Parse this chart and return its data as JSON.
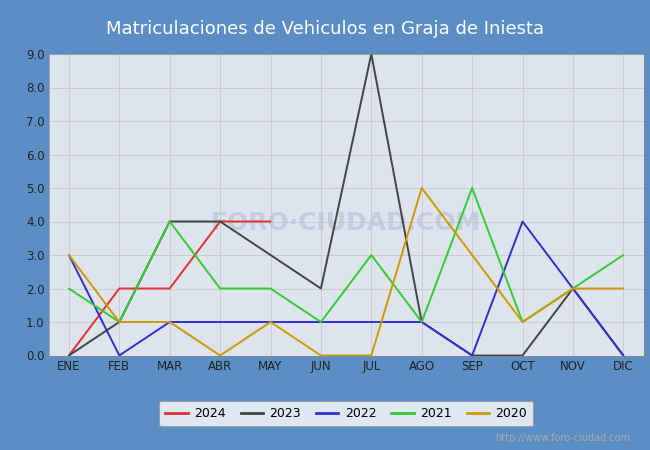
{
  "title": "Matriculaciones de Vehiculos en Graja de Iniesta",
  "months": [
    "ENE",
    "FEB",
    "MAR",
    "ABR",
    "MAY",
    "JUN",
    "JUL",
    "AGO",
    "SEP",
    "OCT",
    "NOV",
    "DIC"
  ],
  "series": {
    "2024": {
      "data": [
        0,
        2,
        2,
        4,
        4,
        null,
        null,
        null,
        null,
        null,
        null,
        null
      ],
      "color": "#e03030"
    },
    "2023": {
      "data": [
        0,
        1,
        4,
        4,
        3,
        2,
        9,
        1,
        0,
        0,
        2,
        0
      ],
      "color": "#444444"
    },
    "2022": {
      "data": [
        3,
        0,
        1,
        1,
        1,
        1,
        1,
        1,
        0,
        4,
        2,
        0
      ],
      "color": "#3030cc"
    },
    "2021": {
      "data": [
        2,
        1,
        4,
        2,
        2,
        1,
        3,
        1,
        5,
        1,
        2,
        3
      ],
      "color": "#30cc30"
    },
    "2020": {
      "data": [
        3,
        1,
        1,
        0,
        1,
        0,
        0,
        5,
        3,
        1,
        2,
        2
      ],
      "color": "#cc9900"
    }
  },
  "ylim": [
    0,
    9.0
  ],
  "yticks": [
    0.0,
    1.0,
    2.0,
    3.0,
    4.0,
    5.0,
    6.0,
    7.0,
    8.0,
    9.0
  ],
  "grid_color": "#cccccc",
  "fig_bg": "#5b8ec5",
  "plot_bg": "#dde4ee",
  "title_color": "#ffffff",
  "watermark": "FORO·CIUDAD.COM",
  "watermark_color": "#b8c4d8",
  "url": "http://www.foro-ciudad.com",
  "legend_order": [
    "2024",
    "2023",
    "2022",
    "2021",
    "2020"
  ],
  "linewidth": 1.4
}
